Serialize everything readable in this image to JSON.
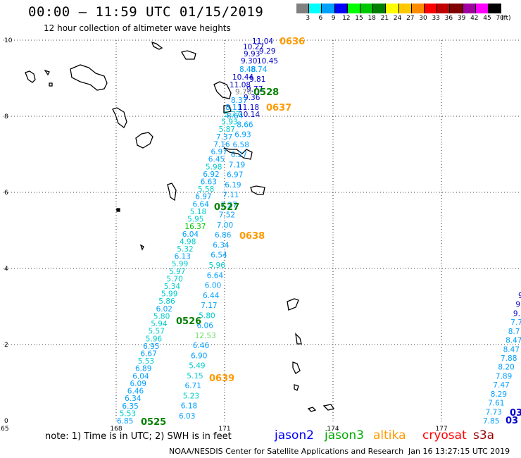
{
  "header": {
    "title": "00:00 – 11:59 UTC 01/15/2019",
    "subtitle": "12 hour collection of altimeter wave heights"
  },
  "color_scale": {
    "unit": "(ft)",
    "bins": [
      {
        "label": "3",
        "color": "#808080"
      },
      {
        "label": "6",
        "color": "#00ffff"
      },
      {
        "label": "9",
        "color": "#00a0ff"
      },
      {
        "label": "12",
        "color": "#0000ff"
      },
      {
        "label": "15",
        "color": "#00ff00"
      },
      {
        "label": "18",
        "color": "#00c800"
      },
      {
        "label": "21",
        "color": "#008000"
      },
      {
        "label": "24",
        "color": "#ffff00"
      },
      {
        "label": "27",
        "color": "#ffc800"
      },
      {
        "label": "30",
        "color": "#ff8c00"
      },
      {
        "label": "33",
        "color": "#ff0000"
      },
      {
        "label": "36",
        "color": "#c00000"
      },
      {
        "label": "39",
        "color": "#800000"
      },
      {
        "label": "42",
        "color": "#a000a0"
      },
      {
        "label": "45",
        "color": "#ff00ff"
      },
      {
        "label": "70",
        "color": "#000000"
      }
    ]
  },
  "axes": {
    "x_ticks": [
      "165",
      "168",
      "171",
      "174",
      "177"
    ],
    "y_ticks": [
      "0",
      "2",
      "4",
      "6",
      "8",
      "10"
    ],
    "grid": "dotted"
  },
  "pass_labels": [
    {
      "text": "0636",
      "color": "#ff9900"
    },
    {
      "text": "0528",
      "color": "#008000"
    },
    {
      "text": "0637",
      "color": "#ff9900"
    },
    {
      "text": "0527",
      "color": "#008000"
    },
    {
      "text": "0638",
      "color": "#ff9900"
    },
    {
      "text": "0526",
      "color": "#008000"
    },
    {
      "text": "0639",
      "color": "#ff9900"
    },
    {
      "text": "0525",
      "color": "#008000"
    },
    {
      "text": "03",
      "color": "#0000cc"
    },
    {
      "text": "03",
      "color": "#0000cc"
    }
  ],
  "tracks": {
    "track_a": {
      "color": "#00cccc",
      "values": [
        "6.85",
        "5.53",
        "6.35",
        "6.34",
        "6.46",
        "6.09",
        "6.04",
        "6.89",
        "5.53",
        "6.67",
        "6.95",
        "5.96",
        "5.57",
        "5.94",
        "5.80",
        "6.02",
        "5.86",
        "5.99",
        "5.34",
        "5.70",
        "5.97",
        "5.99",
        "6.13",
        "5.32",
        "4.98",
        "6.04",
        "16.37",
        "5.95",
        "5.18",
        "6.64",
        "6.97",
        "5.58",
        "6.63",
        "6.92",
        "5.98",
        "6.45",
        "6.97",
        "7.16",
        "7.37",
        "5.87",
        "5.93",
        "5.77"
      ]
    },
    "track_b": {
      "color": "#00cccc",
      "values": [
        "6.03",
        "6.18",
        "5.23",
        "6.71",
        "5.15",
        "5.49",
        "6.90",
        "6.46",
        "12.53",
        "6.06",
        "5.80",
        "7.17",
        "6.44",
        "6.00",
        "6.64",
        "5.96",
        "6.54",
        "6.34",
        "6.86",
        "7.00",
        "7.52",
        "7.27",
        "7.11",
        "6.19",
        "6.97",
        "7.19",
        "6.27",
        "6.58",
        "6.93",
        "8.66",
        "10.14"
      ]
    },
    "track_c": {
      "color": "#00cccc",
      "values": [
        "7.85",
        "7.73",
        "7.61",
        "8.29",
        "7.47",
        "7.89",
        "8.20",
        "7.88",
        "8.47",
        "8.47",
        "8.7",
        "7.7",
        "9.",
        "9.",
        "9"
      ]
    },
    "north_values": [
      {
        "text": "11.04",
        "color": "#0000cc"
      },
      {
        "text": "10.27",
        "color": "#0000cc"
      },
      {
        "text": "9.29",
        "color": "#0000cc"
      },
      {
        "text": "9.93",
        "color": "#0000cc"
      },
      {
        "text": "9.30",
        "color": "#0000cc"
      },
      {
        "text": "10.45",
        "color": "#0000cc"
      },
      {
        "text": "8.48",
        "color": "#00a0ff"
      },
      {
        "text": "8.74",
        "color": "#00a0ff"
      },
      {
        "text": "10.44",
        "color": "#0000cc"
      },
      {
        "text": "9.81",
        "color": "#0000cc"
      },
      {
        "text": "11.08",
        "color": "#0000cc"
      },
      {
        "text": "9.77",
        "color": "#0000cc"
      },
      {
        "text": "9.70",
        "color": "#808080"
      },
      {
        "text": "9.36",
        "color": "#0000cc"
      },
      {
        "text": "8.37",
        "color": "#00a0ff"
      },
      {
        "text": "8.11",
        "color": "#00a0ff"
      },
      {
        "text": "11.18",
        "color": "#0000cc"
      },
      {
        "text": "8.64",
        "color": "#00a0ff"
      }
    ]
  },
  "footer": {
    "note": "note: 1) Time is in UTC; 2) SWH is in feet",
    "satellites": [
      {
        "name": "jason2",
        "color": "#0000ff"
      },
      {
        "name": "jason3",
        "color": "#00aa00"
      },
      {
        "name": "altika",
        "color": "#ff9900"
      },
      {
        "name": "cryosat",
        "color": "#ff0000"
      },
      {
        "name": "s3a",
        "color": "#990000"
      }
    ],
    "credit": "NOAA/NESDIS Center for Satellite Applications and Research",
    "timestamp": "Jan 16 13:27:15 UTC 2019"
  }
}
